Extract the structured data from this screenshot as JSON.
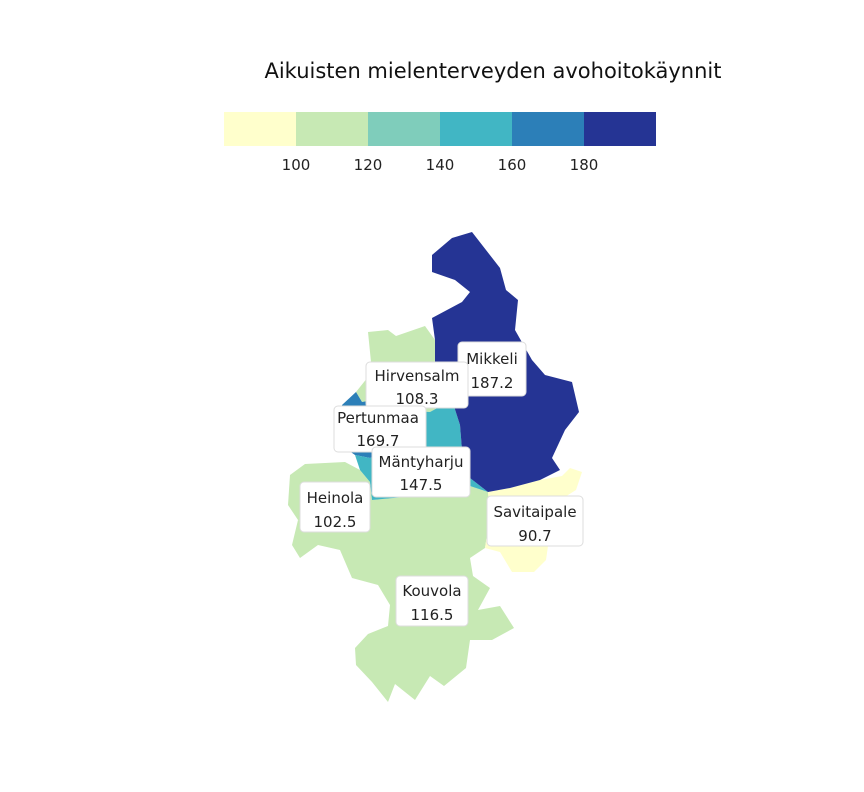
{
  "title": "Aikuisten mielenterveyden avohoitokäynnit",
  "legend": {
    "colors": [
      "#ffffcc",
      "#c7e9b4",
      "#7fcdbb",
      "#41b6c4",
      "#2c7fb8",
      "#253494"
    ],
    "ticks": [
      "100",
      "120",
      "140",
      "160",
      "180"
    ]
  },
  "municipalities": [
    {
      "name": "Mikkeli",
      "value": "187.2",
      "color": "#253494"
    },
    {
      "name": "Hirvensalm",
      "value": "108.3",
      "color": "#c7e9b4"
    },
    {
      "name": "Pertunmaa",
      "value": "169.7",
      "color": "#2c7fb8"
    },
    {
      "name": "Mäntyharju",
      "value": "147.5",
      "color": "#41b6c4"
    },
    {
      "name": "Heinola",
      "value": "102.5",
      "color": "#c7e9b4"
    },
    {
      "name": "Savitaipale",
      "value": "90.7",
      "color": "#ffffcc"
    },
    {
      "name": "Kouvola",
      "value": "116.5",
      "color": "#c7e9b4"
    }
  ]
}
